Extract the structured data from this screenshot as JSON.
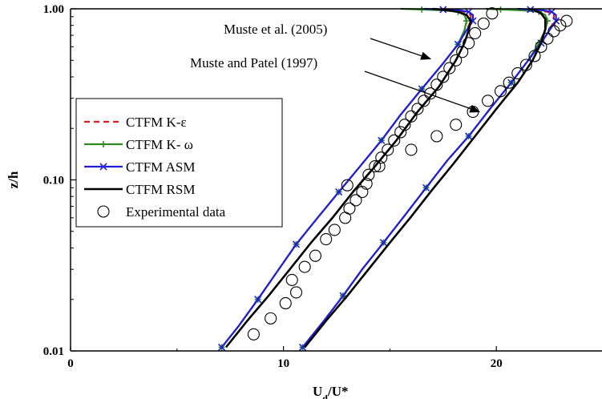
{
  "chart_data": {
    "type": "line",
    "xlabel": "U",
    "xlabel_sub": "d",
    "xlabel_tail": "/U*",
    "ylabel": "z/h",
    "xlim": [
      0,
      25
    ],
    "ylim": [
      0.01,
      1.0
    ],
    "yscale": "log",
    "x_ticks": [
      0,
      10,
      20
    ],
    "x_tick_labels": [
      "0",
      "10",
      "20"
    ],
    "y_ticks": [
      0.01,
      0.1,
      1.0
    ],
    "y_tick_labels": [
      "0.01",
      "0.10",
      "1.00"
    ],
    "grid": false,
    "legend_position": "center-left",
    "series": [
      {
        "name": "CTFM K-ε",
        "color": "#e41a1c",
        "style": "dashed",
        "marker": "none",
        "groups": [
          {
            "x": [
              7.1,
              7.9,
              8.8,
              9.7,
              10.6,
              11.6,
              12.6,
              13.6,
              14.6,
              15.5,
              16.5,
              17.5,
              18.2,
              18.6,
              18.8,
              18.8,
              18.5,
              18.0,
              17.3,
              16.6
            ],
            "y": [
              0.0105,
              0.014,
              0.02,
              0.029,
              0.042,
              0.06,
              0.085,
              0.12,
              0.17,
              0.24,
              0.34,
              0.48,
              0.62,
              0.75,
              0.85,
              0.92,
              0.96,
              0.98,
              0.99,
              1.0
            ]
          },
          {
            "x": [
              10.9,
              11.9,
              12.8,
              13.7,
              14.7,
              15.7,
              16.7,
              17.7,
              18.7,
              19.7,
              20.7,
              21.5,
              22.1,
              22.5,
              22.7,
              22.7,
              22.4,
              21.9,
              21.0,
              20.0
            ],
            "y": [
              0.0105,
              0.015,
              0.021,
              0.03,
              0.043,
              0.062,
              0.09,
              0.13,
              0.18,
              0.26,
              0.37,
              0.5,
              0.63,
              0.75,
              0.85,
              0.92,
              0.96,
              0.98,
              0.99,
              1.0
            ]
          }
        ]
      },
      {
        "name": "CTFM K- ω",
        "color": "#2e8b22",
        "style": "solid",
        "marker": "plus",
        "groups": [
          {
            "x": [
              7.1,
              7.9,
              8.8,
              9.7,
              10.6,
              11.6,
              12.6,
              13.6,
              14.6,
              15.5,
              16.5,
              17.5,
              18.2,
              18.5,
              18.6,
              18.5,
              18.2,
              17.5,
              16.5,
              15.5
            ],
            "y": [
              0.0105,
              0.014,
              0.02,
              0.029,
              0.042,
              0.06,
              0.085,
              0.12,
              0.17,
              0.24,
              0.34,
              0.48,
              0.62,
              0.75,
              0.85,
              0.92,
              0.96,
              0.98,
              0.99,
              1.0
            ]
          },
          {
            "x": [
              10.9,
              11.9,
              12.8,
              13.7,
              14.7,
              15.7,
              16.7,
              17.7,
              18.7,
              19.7,
              20.7,
              21.5,
              22.0,
              22.3,
              22.4,
              22.3,
              22.0,
              21.2,
              20.2,
              19.5
            ],
            "y": [
              0.0105,
              0.015,
              0.021,
              0.03,
              0.043,
              0.062,
              0.09,
              0.13,
              0.18,
              0.26,
              0.37,
              0.5,
              0.63,
              0.75,
              0.85,
              0.92,
              0.96,
              0.98,
              0.99,
              1.0
            ]
          }
        ]
      },
      {
        "name": "CTFM ASM",
        "color": "#1f1fd6",
        "style": "solid",
        "marker": "x",
        "groups": [
          {
            "x": [
              7.1,
              7.9,
              8.8,
              9.7,
              10.6,
              11.6,
              12.6,
              13.6,
              14.6,
              15.5,
              16.5,
              17.5,
              18.2,
              18.6,
              18.9,
              18.9,
              18.7,
              18.3,
              17.5,
              16.6
            ],
            "y": [
              0.0105,
              0.014,
              0.02,
              0.029,
              0.042,
              0.06,
              0.085,
              0.12,
              0.17,
              0.24,
              0.34,
              0.48,
              0.62,
              0.75,
              0.85,
              0.92,
              0.96,
              0.98,
              0.99,
              1.0
            ]
          },
          {
            "x": [
              10.9,
              11.9,
              12.8,
              13.7,
              14.7,
              15.7,
              16.7,
              17.7,
              18.7,
              19.7,
              20.7,
              21.5,
              22.1,
              22.5,
              22.8,
              22.8,
              22.6,
              22.2,
              21.6,
              21.0
            ],
            "y": [
              0.0105,
              0.015,
              0.021,
              0.03,
              0.043,
              0.062,
              0.09,
              0.13,
              0.18,
              0.26,
              0.37,
              0.5,
              0.63,
              0.75,
              0.85,
              0.92,
              0.96,
              0.98,
              0.99,
              1.0
            ]
          }
        ]
      },
      {
        "name": "CTFM RSM",
        "color": "#000000",
        "style": "solid",
        "marker": "none",
        "groups": [
          {
            "x": [
              7.3,
              8.3,
              9.3,
              10.3,
              11.3,
              12.3,
              13.3,
              14.3,
              15.3,
              16.3,
              17.3,
              18.1,
              18.5,
              18.7,
              18.8,
              18.6,
              18.2,
              17.6,
              17.0
            ],
            "y": [
              0.0105,
              0.015,
              0.021,
              0.03,
              0.043,
              0.06,
              0.086,
              0.12,
              0.17,
              0.25,
              0.35,
              0.5,
              0.63,
              0.75,
              0.85,
              0.92,
              0.96,
              0.985,
              1.0
            ]
          },
          {
            "x": [
              11.0,
              12.0,
              13.0,
              14.0,
              15.0,
              16.0,
              17.0,
              18.0,
              19.0,
              20.0,
              21.0,
              21.7,
              22.1,
              22.3,
              22.3,
              22.1,
              21.8,
              21.5
            ],
            "y": [
              0.0105,
              0.015,
              0.021,
              0.03,
              0.043,
              0.061,
              0.088,
              0.125,
              0.18,
              0.26,
              0.37,
              0.5,
              0.63,
              0.76,
              0.87,
              0.94,
              0.98,
              1.0
            ]
          }
        ]
      },
      {
        "name": "Experimental data",
        "color": "#000000",
        "style": "none",
        "marker": "circle",
        "groups": [
          {
            "x": [
              8.6,
              9.4,
              10.1,
              10.4,
              10.6,
              11.0,
              11.5,
              12.0,
              12.4,
              12.9,
              13.1,
              13.4,
              13.7,
              13.9,
              14.0,
              14.3,
              14.6,
              14.9,
              15.2,
              15.5,
              15.7,
              16.0,
              16.3,
              16.6,
              16.9,
              17.2,
              17.5,
              17.8,
              18.1,
              18.4,
              18.7,
              19.0,
              19.4,
              19.8
            ],
            "y": [
              0.0125,
              0.0155,
              0.019,
              0.026,
              0.022,
              0.031,
              0.036,
              0.045,
              0.051,
              0.06,
              0.068,
              0.076,
              0.085,
              0.095,
              0.107,
              0.12,
              0.135,
              0.15,
              0.17,
              0.19,
              0.21,
              0.235,
              0.26,
              0.29,
              0.32,
              0.36,
              0.4,
              0.45,
              0.5,
              0.56,
              0.63,
              0.72,
              0.82,
              0.94
            ]
          },
          {
            "x": [
              13.0,
              14.5,
              16.0,
              17.2,
              18.1,
              18.9,
              19.6,
              20.2,
              20.6,
              21.0,
              21.4,
              21.8,
              22.1,
              22.4,
              22.7,
              23.0,
              23.3
            ],
            "y": [
              0.093,
              0.12,
              0.15,
              0.18,
              0.21,
              0.25,
              0.29,
              0.33,
              0.37,
              0.42,
              0.47,
              0.53,
              0.6,
              0.67,
              0.74,
              0.8,
              0.85
            ]
          }
        ]
      }
    ],
    "annotations": [
      {
        "text": "Muste et al. (2005)",
        "x": 16.9,
        "y": 0.51
      },
      {
        "text": "Muste and Patel (1997)",
        "x": 19.2,
        "y": 0.25
      }
    ]
  }
}
